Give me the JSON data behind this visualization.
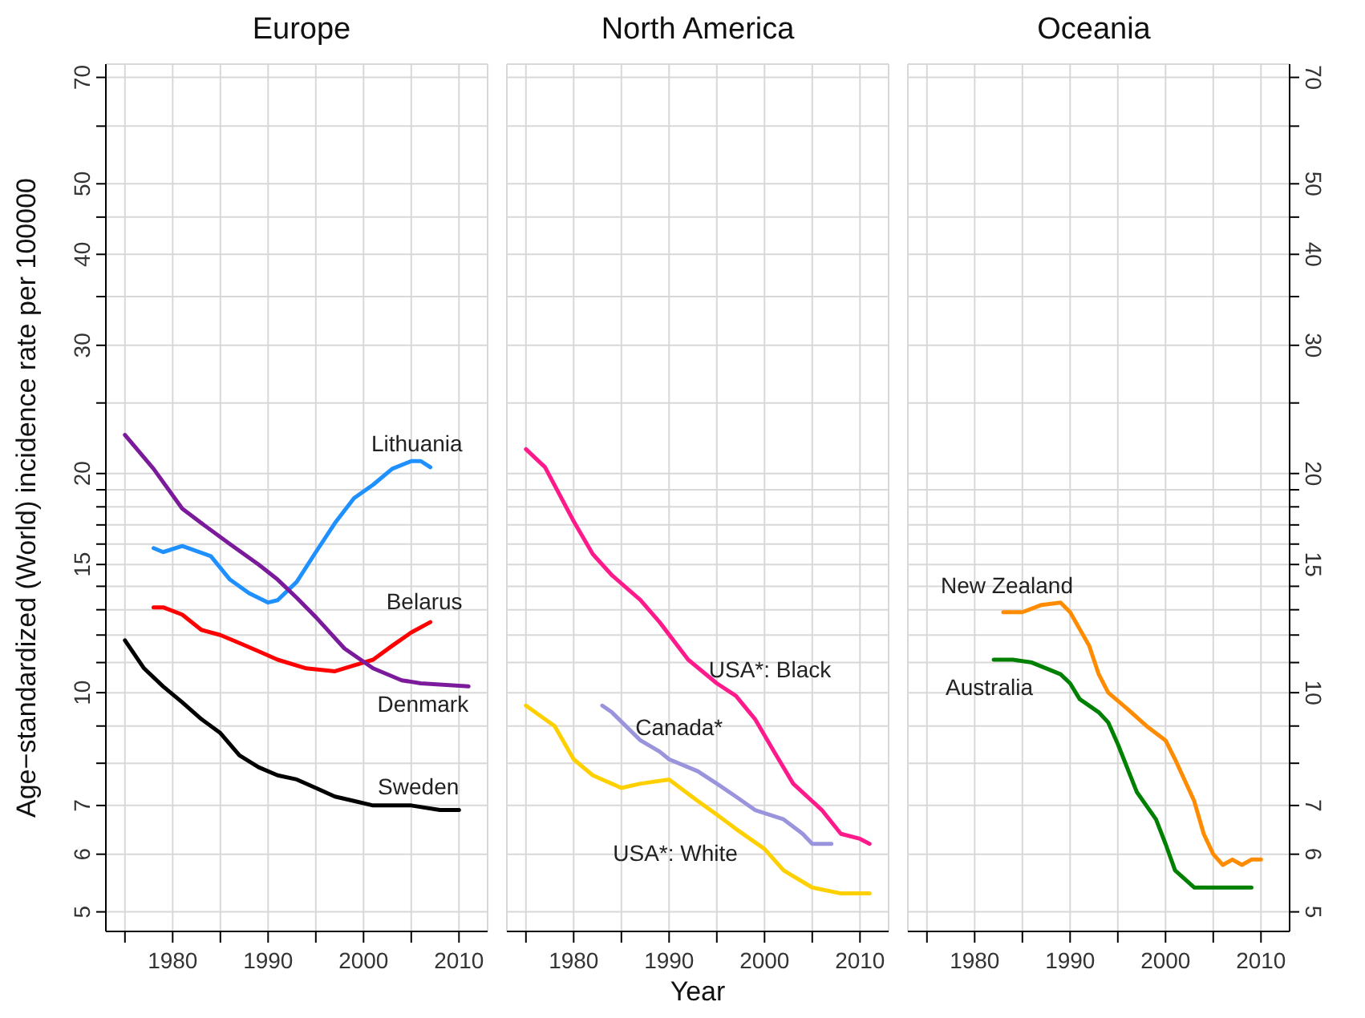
{
  "chart_data": [
    {
      "type": "line",
      "title": "Europe",
      "ylabel": "Age−standardized (World) incidence rate per 100000",
      "log": true,
      "grid": true,
      "xlim": [
        1973,
        2013
      ],
      "xticks": [
        {
          "value": 1975,
          "label": null
        },
        1980,
        {
          "value": 1985,
          "label": null
        },
        1990,
        {
          "value": 1995,
          "label": null
        },
        2000,
        {
          "value": 2005,
          "label": null
        },
        2010
      ],
      "ylim": [
        4.7,
        73
      ],
      "yticks": [
        5,
        6,
        7,
        {
          "value": 8,
          "label": null
        },
        {
          "value": 9,
          "label": null
        },
        10,
        {
          "value": 11,
          "label": null
        },
        {
          "value": 12,
          "label": null
        },
        {
          "value": 13,
          "label": null
        },
        {
          "value": 14,
          "label": null
        },
        15,
        {
          "value": 16,
          "label": null
        },
        {
          "value": 17,
          "label": null
        },
        {
          "value": 18,
          "label": null
        },
        {
          "value": 19,
          "label": null
        },
        20,
        {
          "value": 25,
          "label": null
        },
        30,
        {
          "value": 35,
          "label": null
        },
        40,
        {
          "value": 45,
          "label": null
        },
        50,
        {
          "value": 60,
          "label": null
        },
        70
      ],
      "series": [
        {
          "name": "Lithuania",
          "color": "#1e90ff",
          "x": [
            1978,
            1979,
            1981,
            1984,
            1986,
            1988,
            1990,
            1991,
            1993,
            1995,
            1997,
            1999,
            2001,
            2003,
            2005,
            2006,
            2007
          ],
          "values": [
            15.8,
            15.6,
            15.9,
            15.4,
            14.3,
            13.7,
            13.3,
            13.4,
            14.2,
            15.6,
            17.1,
            18.5,
            19.3,
            20.3,
            20.8,
            20.8,
            20.4
          ]
        },
        {
          "name": "Belarus",
          "color": "#ff0000",
          "x": [
            1978,
            1979,
            1981,
            1983,
            1985,
            1987,
            1989,
            1991,
            1994,
            1997,
            1999,
            2001,
            2003,
            2005,
            2007
          ],
          "values": [
            13.1,
            13.1,
            12.8,
            12.2,
            12.0,
            11.7,
            11.4,
            11.1,
            10.8,
            10.7,
            10.9,
            11.1,
            11.6,
            12.1,
            12.5
          ]
        },
        {
          "name": "Denmark",
          "color": "#7b1a9a",
          "x": [
            1975,
            1978,
            1981,
            1983,
            1986,
            1989,
            1991,
            1993,
            1995,
            1998,
            2001,
            2004,
            2006,
            2011
          ],
          "values": [
            22.6,
            20.3,
            17.9,
            17.1,
            16.0,
            15.0,
            14.3,
            13.5,
            12.7,
            11.5,
            10.8,
            10.4,
            10.3,
            10.2
          ]
        },
        {
          "name": "Sweden",
          "color": "#000000",
          "x": [
            1975,
            1977,
            1979,
            1981,
            1983,
            1985,
            1987,
            1989,
            1991,
            1993,
            1995,
            1997,
            1999,
            2001,
            2003,
            2005,
            2008,
            2010
          ],
          "values": [
            11.8,
            10.8,
            10.2,
            9.7,
            9.2,
            8.8,
            8.2,
            7.9,
            7.7,
            7.6,
            7.4,
            7.2,
            7.1,
            7.0,
            7.0,
            7.0,
            6.9,
            6.9
          ]
        }
      ]
    },
    {
      "type": "line",
      "title": "North America",
      "xlabel": "Year",
      "log": true,
      "grid": true,
      "tick_labels": "x",
      "xlim": [
        1973,
        2013
      ],
      "xticks": [
        {
          "value": 1975,
          "label": null
        },
        1980,
        {
          "value": 1985,
          "label": null
        },
        1990,
        {
          "value": 1995,
          "label": null
        },
        2000,
        {
          "value": 2005,
          "label": null
        },
        2010
      ],
      "ylim": [
        4.7,
        73
      ],
      "yticks": [
        5,
        6,
        7,
        {
          "value": 8,
          "label": null
        },
        {
          "value": 9,
          "label": null
        },
        10,
        {
          "value": 11,
          "label": null
        },
        {
          "value": 12,
          "label": null
        },
        {
          "value": 13,
          "label": null
        },
        {
          "value": 14,
          "label": null
        },
        15,
        {
          "value": 16,
          "label": null
        },
        {
          "value": 17,
          "label": null
        },
        {
          "value": 18,
          "label": null
        },
        {
          "value": 19,
          "label": null
        },
        20,
        {
          "value": 25,
          "label": null
        },
        30,
        {
          "value": 35,
          "label": null
        },
        40,
        {
          "value": 45,
          "label": null
        },
        50,
        {
          "value": 60,
          "label": null
        },
        70
      ],
      "series": [
        {
          "name": "USA*: Black",
          "color": "#ff1a8c",
          "x": [
            1975,
            1977,
            1980,
            1982,
            1984,
            1987,
            1989,
            1992,
            1995,
            1997,
            1999,
            2001,
            2003,
            2006,
            2008,
            2010,
            2011
          ],
          "values": [
            21.6,
            20.4,
            17.2,
            15.5,
            14.5,
            13.4,
            12.5,
            11.1,
            10.3,
            9.9,
            9.2,
            8.3,
            7.5,
            6.9,
            6.4,
            6.3,
            6.2
          ]
        },
        {
          "name": "Canada*",
          "color": "#9a94dc",
          "x": [
            1983,
            1984,
            1987,
            1989,
            1990,
            1993,
            1995,
            1997,
            1999,
            2002,
            2004,
            2005,
            2007
          ],
          "values": [
            9.6,
            9.4,
            8.6,
            8.3,
            8.1,
            7.8,
            7.5,
            7.2,
            6.9,
            6.7,
            6.4,
            6.2,
            6.2
          ]
        },
        {
          "name": "USA*: White",
          "color": "#ffd000",
          "x": [
            1975,
            1978,
            1980,
            1982,
            1985,
            1987,
            1990,
            1993,
            1995,
            1997,
            2000,
            2002,
            2005,
            2008,
            2011
          ],
          "values": [
            9.6,
            9.0,
            8.1,
            7.7,
            7.4,
            7.5,
            7.6,
            7.1,
            6.8,
            6.5,
            6.1,
            5.7,
            5.4,
            5.3,
            5.3
          ]
        }
      ]
    },
    {
      "type": "line",
      "title": "Oceania",
      "log": "y2",
      "grid": true,
      "xlim": [
        1973,
        2013
      ],
      "xticks": [
        {
          "value": 1975,
          "label": null
        },
        1980,
        {
          "value": 1985,
          "label": null
        },
        1990,
        {
          "value": 1995,
          "label": null
        },
        2000,
        {
          "value": 2005,
          "label": null
        },
        2010
      ],
      "y2lim": [
        4.7,
        73
      ],
      "y2ticks": [
        5,
        6,
        7,
        {
          "value": 8,
          "label": null
        },
        {
          "value": 9,
          "label": null
        },
        10,
        {
          "value": 11,
          "label": null
        },
        {
          "value": 12,
          "label": null
        },
        {
          "value": 13,
          "label": null
        },
        {
          "value": 14,
          "label": null
        },
        15,
        {
          "value": 16,
          "label": null
        },
        {
          "value": 17,
          "label": null
        },
        {
          "value": 18,
          "label": null
        },
        {
          "value": 19,
          "label": null
        },
        20,
        {
          "value": 25,
          "label": null
        },
        30,
        {
          "value": 35,
          "label": null
        },
        40,
        {
          "value": 45,
          "label": null
        },
        50,
        {
          "value": 60,
          "label": null
        },
        70
      ],
      "series": [
        {
          "name": "New Zealand",
          "color": "#ff8c00",
          "axis": "y2",
          "x": [
            1983,
            1984,
            1985,
            1987,
            1989,
            1990,
            1992,
            1993,
            1994,
            1996,
            1998,
            2000,
            2001,
            2003,
            2004,
            2005,
            2006,
            2007,
            2008,
            2009,
            2010
          ],
          "values": [
            12.9,
            12.9,
            12.9,
            13.2,
            13.3,
            12.9,
            11.6,
            10.6,
            10.0,
            9.5,
            9.0,
            8.6,
            8.1,
            7.1,
            6.4,
            6.0,
            5.8,
            5.9,
            5.8,
            5.9,
            5.9
          ]
        },
        {
          "name": "Australia",
          "color": "#008000",
          "axis": "y2",
          "x": [
            1982,
            1984,
            1986,
            1989,
            1990,
            1991,
            1993,
            1994,
            1995,
            1997,
            1999,
            2000,
            2001,
            2003,
            2005,
            2007,
            2009
          ],
          "values": [
            11.1,
            11.1,
            11.0,
            10.6,
            10.3,
            9.8,
            9.4,
            9.1,
            8.5,
            7.3,
            6.7,
            6.2,
            5.7,
            5.4,
            5.4,
            5.4,
            5.4
          ]
        }
      ]
    }
  ]
}
